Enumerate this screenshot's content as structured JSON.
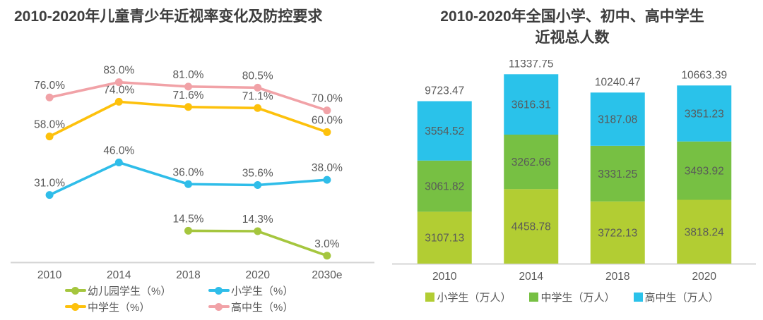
{
  "chart_data": [
    {
      "type": "line",
      "title": "2010-2020年儿童青少年近视率变化及防控要求",
      "categories": [
        "2010",
        "2014",
        "2018",
        "2020",
        "2030e"
      ],
      "series": [
        {
          "name": "幼儿园学生（%）",
          "color": "#a5c63e",
          "values": [
            null,
            null,
            14.5,
            14.3,
            3.0
          ]
        },
        {
          "name": "小学生（%）",
          "color": "#2fbde9",
          "values": [
            31.0,
            46.0,
            36.0,
            35.6,
            38.0
          ]
        },
        {
          "name": "中学生（%）",
          "color": "#fdc10c",
          "values": [
            58.0,
            74.0,
            71.6,
            71.1,
            60.0
          ]
        },
        {
          "name": "高中生（%）",
          "color": "#f1a2a7",
          "values": [
            76.0,
            83.0,
            81.0,
            80.5,
            70.0
          ]
        }
      ],
      "label_format": "percent_1dp",
      "ylim": [
        0,
        92
      ],
      "grid": false,
      "legend_position": "bottom",
      "axis_color": "#d5d5d5",
      "label_color": "#595959"
    },
    {
      "type": "stacked-bar",
      "title": "2010-2020年全国小学、初中、高中学生近视总人数",
      "title_lines": [
        "2010-2020年全国小学、初中、高中学生",
        "近视总人数"
      ],
      "categories": [
        "2010",
        "2014",
        "2018",
        "2020"
      ],
      "series": [
        {
          "name": "小学生（万人）",
          "color": "#b2cd33",
          "values": [
            3107.13,
            4458.78,
            3722.13,
            3818.24
          ]
        },
        {
          "name": "中学生（万人）",
          "color": "#77c043",
          "values": [
            3061.82,
            3262.66,
            3331.25,
            3493.92
          ]
        },
        {
          "name": "高中生（万人）",
          "color": "#2ac2ea",
          "values": [
            3554.52,
            3616.31,
            3187.08,
            3351.23
          ]
        }
      ],
      "totals": [
        9723.47,
        11337.75,
        10240.47,
        10663.39
      ],
      "label_format": "number_2dp",
      "ylim": [
        0,
        11350
      ],
      "grid": false,
      "legend_position": "bottom",
      "axis_color": "#d5d5d5",
      "label_color": "#595959"
    }
  ]
}
